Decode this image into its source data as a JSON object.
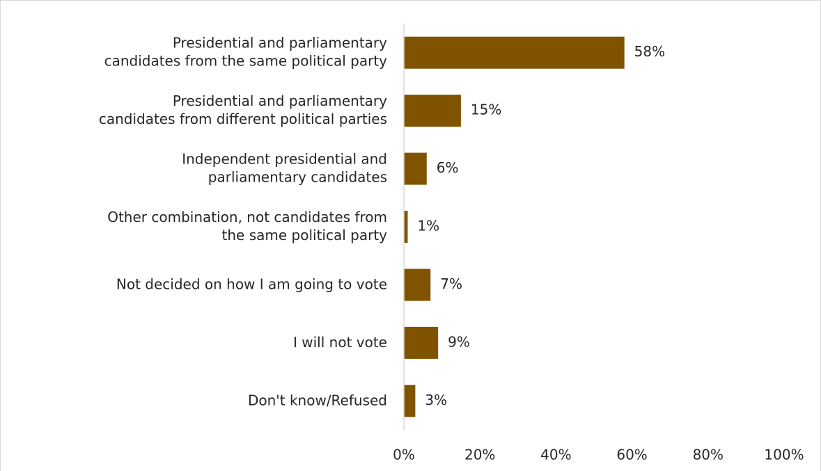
{
  "chart_data": {
    "type": "barh",
    "categories": [
      [
        "Presidential and parliamentary",
        "candidates from the same political party"
      ],
      [
        "Presidential and parliamentary",
        "candidates from different political parties"
      ],
      [
        "Independent presidential and",
        "parliamentary candidates"
      ],
      [
        "Other combination, not candidates from",
        "the same political party"
      ],
      [
        "Not decided on how I am going to vote"
      ],
      [
        "I will not vote"
      ],
      [
        "Don't know/Refused"
      ]
    ],
    "values": [
      58,
      15,
      6,
      1,
      7,
      9,
      3
    ],
    "value_labels": [
      "58%",
      "15%",
      "6%",
      "1%",
      "7%",
      "9%",
      "3%"
    ],
    "color": "#7f5300",
    "xlim": [
      0,
      100
    ],
    "xticks": [
      {
        "value": 0,
        "label": "0%"
      },
      {
        "value": 20,
        "label": "20%"
      },
      {
        "value": 40,
        "label": "40%"
      },
      {
        "value": 60,
        "label": "60%"
      },
      {
        "value": 80,
        "label": "80%"
      },
      {
        "value": 100,
        "label": "100%"
      }
    ]
  }
}
